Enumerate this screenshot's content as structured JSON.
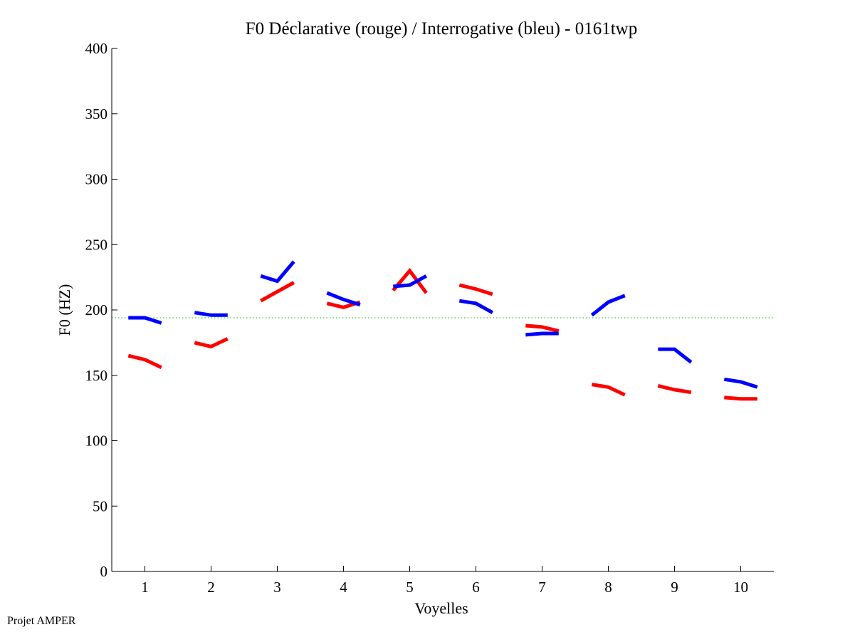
{
  "footer": "Projet AMPER",
  "chart_data": {
    "type": "line",
    "title": "F0 Déclarative (rouge) / Interrogative (bleu) - 0161twp",
    "xlabel": "Voyelles",
    "ylabel": "F0 (HZ)",
    "xlim": [
      0.5,
      10.5
    ],
    "ylim": [
      0,
      400
    ],
    "xticks": [
      "1",
      "2",
      "3",
      "4",
      "5",
      "6",
      "7",
      "8",
      "9",
      "10"
    ],
    "yticks": [
      "0",
      "50",
      "100",
      "150",
      "200",
      "250",
      "300",
      "350",
      "400"
    ],
    "reference_line": {
      "y": 194,
      "color": "#00bb00",
      "style": "dotted"
    },
    "series": [
      {
        "name": "Déclarative",
        "color": "#ff0000",
        "segments": [
          [
            [
              0.75,
              165
            ],
            [
              1.0,
              162
            ],
            [
              1.25,
              156
            ]
          ],
          [
            [
              1.75,
              175
            ],
            [
              2.0,
              172
            ],
            [
              2.25,
              178
            ]
          ],
          [
            [
              2.75,
              207
            ],
            [
              3.0,
              214
            ],
            [
              3.25,
              221
            ]
          ],
          [
            [
              3.75,
              205
            ],
            [
              4.0,
              202
            ],
            [
              4.25,
              206
            ]
          ],
          [
            [
              4.75,
              215
            ],
            [
              5.0,
              230
            ],
            [
              5.25,
              213
            ]
          ],
          [
            [
              5.75,
              219
            ],
            [
              6.0,
              216
            ],
            [
              6.25,
              212
            ]
          ],
          [
            [
              6.75,
              188
            ],
            [
              7.0,
              187
            ],
            [
              7.25,
              184
            ]
          ],
          [
            [
              7.75,
              143
            ],
            [
              8.0,
              141
            ],
            [
              8.25,
              135
            ]
          ],
          [
            [
              8.75,
              142
            ],
            [
              9.0,
              139
            ],
            [
              9.25,
              137
            ]
          ],
          [
            [
              9.75,
              133
            ],
            [
              10.0,
              132
            ],
            [
              10.25,
              132
            ]
          ]
        ]
      },
      {
        "name": "Interrogative",
        "color": "#0000ff",
        "segments": [
          [
            [
              0.75,
              194
            ],
            [
              1.0,
              194
            ],
            [
              1.25,
              190
            ]
          ],
          [
            [
              1.75,
              198
            ],
            [
              2.0,
              196
            ],
            [
              2.25,
              196
            ]
          ],
          [
            [
              2.75,
              226
            ],
            [
              3.0,
              222
            ],
            [
              3.25,
              237
            ]
          ],
          [
            [
              3.75,
              213
            ],
            [
              4.0,
              208
            ],
            [
              4.25,
              204
            ]
          ],
          [
            [
              4.75,
              218
            ],
            [
              5.0,
              219
            ],
            [
              5.25,
              226
            ]
          ],
          [
            [
              5.75,
              207
            ],
            [
              6.0,
              205
            ],
            [
              6.25,
              198
            ]
          ],
          [
            [
              6.75,
              181
            ],
            [
              7.0,
              182
            ],
            [
              7.25,
              182
            ]
          ],
          [
            [
              7.75,
              196
            ],
            [
              8.0,
              206
            ],
            [
              8.25,
              211
            ]
          ],
          [
            [
              8.75,
              170
            ],
            [
              9.0,
              170
            ],
            [
              9.25,
              160
            ]
          ],
          [
            [
              9.75,
              147
            ],
            [
              10.0,
              145
            ],
            [
              10.25,
              141
            ]
          ]
        ]
      }
    ]
  }
}
